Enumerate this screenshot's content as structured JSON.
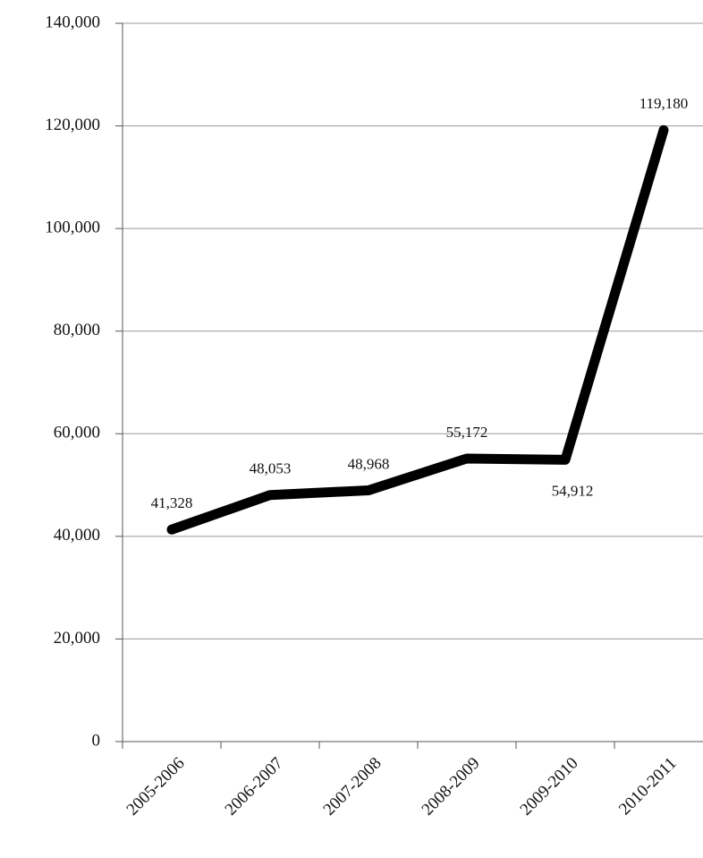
{
  "chart_data": {
    "type": "line",
    "categories": [
      "2005-2006",
      "2006-2007",
      "2007-2008",
      "2008-2009",
      "2009-2010",
      "2010-2011"
    ],
    "series": [
      {
        "color": "#000000",
        "values": [
          41328,
          48053,
          48968,
          55172,
          54912,
          119180
        ],
        "value_labels": [
          "41,328",
          "48,053",
          "48,968",
          "55,172",
          "54,912",
          "119,180"
        ]
      }
    ],
    "ylim": [
      0,
      140000
    ],
    "yticks": [
      0,
      {
        "value": 20000,
        "label": "20,000"
      },
      {
        "value": 40000,
        "label": "40,000"
      },
      {
        "value": 60000,
        "label": "60,000"
      },
      {
        "value": 80000,
        "label": "80,000"
      },
      {
        "value": 100000,
        "label": "100,000"
      },
      {
        "value": 120000,
        "label": "120,000"
      },
      {
        "value": 140000,
        "label": "140,000"
      }
    ],
    "grid": true
  }
}
